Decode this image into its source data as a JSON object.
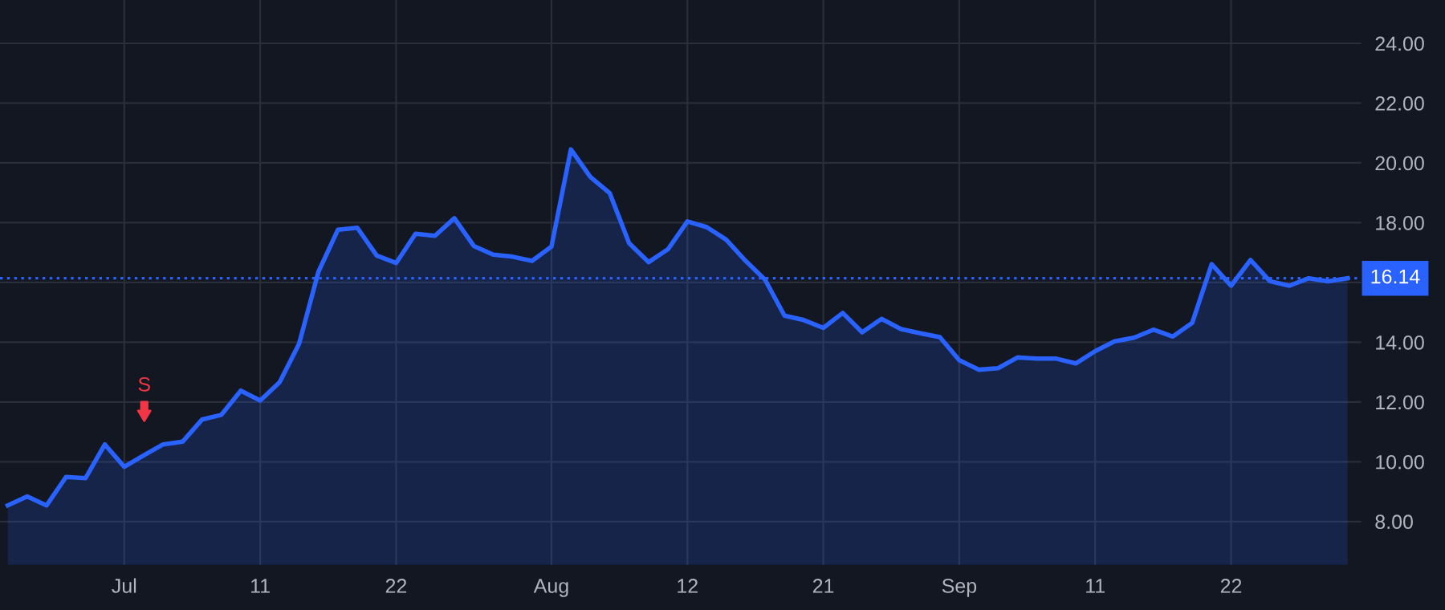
{
  "chart_data": {
    "type": "area",
    "categories": [
      null,
      null,
      null,
      null,
      null,
      null,
      "Jul",
      null,
      null,
      null,
      null,
      null,
      null,
      "11",
      null,
      null,
      null,
      null,
      null,
      null,
      "22",
      null,
      null,
      null,
      null,
      null,
      null,
      null,
      "Aug",
      null,
      null,
      null,
      null,
      null,
      null,
      "12",
      null,
      null,
      null,
      null,
      null,
      null,
      "21",
      null,
      null,
      null,
      null,
      null,
      null,
      "Sep",
      null,
      null,
      null,
      null,
      null,
      null,
      "11",
      null,
      null,
      null,
      null,
      null,
      null,
      "22",
      null,
      null,
      null,
      null,
      null,
      null
    ],
    "series": [
      {
        "color": "#2962ff",
        "values": [
          8.54,
          8.84,
          8.54,
          9.49,
          9.45,
          10.58,
          9.83,
          10.21,
          10.58,
          10.67,
          11.41,
          11.57,
          12.38,
          12.05,
          12.66,
          13.94,
          16.36,
          17.76,
          17.83,
          16.9,
          16.65,
          17.63,
          17.56,
          18.15,
          17.22,
          16.93,
          16.86,
          16.72,
          17.2,
          20.45,
          19.53,
          18.99,
          17.31,
          16.68,
          17.11,
          18.04,
          17.85,
          17.43,
          16.72,
          16.09,
          14.89,
          14.74,
          14.48,
          14.98,
          14.33,
          14.78,
          14.44,
          14.3,
          14.17,
          13.4,
          13.08,
          13.13,
          13.49,
          13.45,
          13.45,
          13.29,
          13.7,
          14.03,
          14.15,
          14.42,
          14.19,
          14.65,
          16.61,
          15.89,
          16.75,
          16.04,
          15.89,
          16.14,
          16.04,
          16.14
        ]
      }
    ],
    "ylim": [
      6.55,
      25.45
    ],
    "yticks": [
      {
        "value": 8,
        "label": "8.00"
      },
      {
        "value": 10,
        "label": "10.00"
      },
      {
        "value": 12,
        "label": "12.00"
      },
      {
        "value": 14,
        "label": "14.00"
      },
      {
        "value": 16,
        "label": null
      },
      {
        "value": 18,
        "label": "18.00"
      },
      {
        "value": 20,
        "label": "20.00"
      },
      {
        "value": 22,
        "label": "22.00"
      },
      {
        "value": 24,
        "label": "24.00"
      }
    ],
    "ref_lines": [
      {
        "axis": "y",
        "value": 16.14,
        "label": "16.14",
        "color": "#2962ff",
        "line_style": "dotted"
      }
    ],
    "annotations": [
      "S"
    ],
    "grid": true
  }
}
